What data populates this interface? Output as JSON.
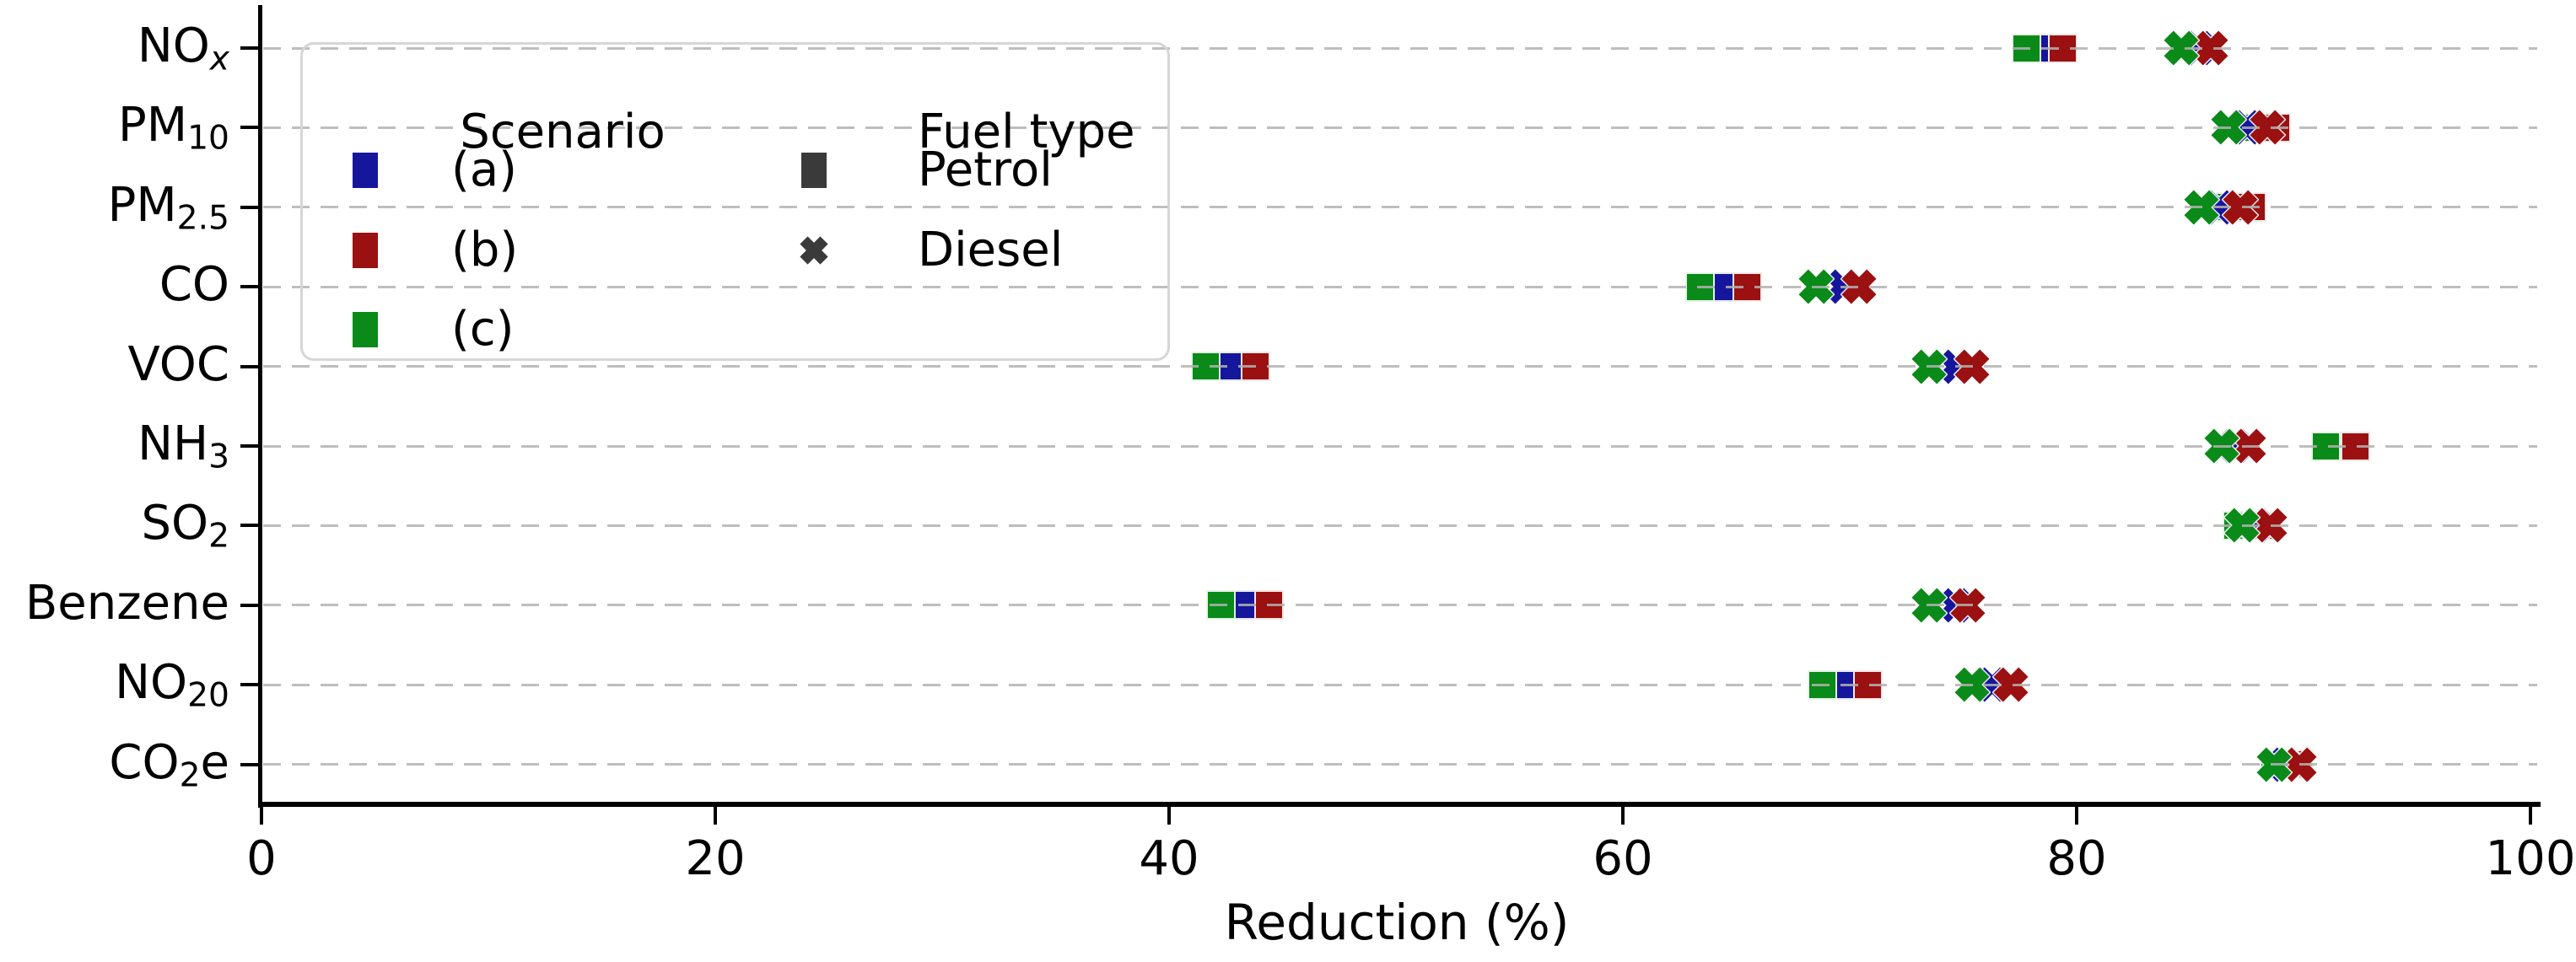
{
  "chart_data": {
    "type": "scatter",
    "title": "",
    "xlabel": "Reduction (%)",
    "ylabel": "",
    "xlim": [
      0,
      100
    ],
    "xticks": [
      0,
      20,
      40,
      60,
      80,
      100
    ],
    "xtick_labels": [
      "0",
      "20",
      "40",
      "60",
      "80",
      "100"
    ],
    "grid": "horizontal-dashed",
    "legend_position": "upper-left",
    "categories": [
      "NO_{x}",
      "PM_{10}",
      "PM_{2.5}",
      "CO",
      "VOC",
      "NH_{3}",
      "SO_{2}",
      "Benzene",
      "NO_{20}",
      "CO_{2}e"
    ],
    "series": [
      {
        "scenario": "(a)",
        "fuel": "Petrol",
        "marker": "square",
        "color": "#16169c",
        "values": [
          78.7,
          88.2,
          87.0,
          64.4,
          42.7,
          91.6,
          87.6,
          43.4,
          69.8,
          89.2
        ]
      },
      {
        "scenario": "(b)",
        "fuel": "Petrol",
        "marker": "square",
        "color": "#9b1010",
        "values": [
          79.4,
          88.8,
          87.7,
          65.5,
          43.8,
          92.3,
          88.2,
          44.4,
          70.8,
          89.8
        ]
      },
      {
        "scenario": "(c)",
        "fuel": "Petrol",
        "marker": "square",
        "color": "#0a8a18",
        "values": [
          77.8,
          87.6,
          86.4,
          63.4,
          41.6,
          91.0,
          87.1,
          42.3,
          68.8,
          88.7
        ]
      },
      {
        "scenario": "(a)",
        "fuel": "Diesel",
        "marker": "x",
        "color": "#16169c",
        "values": [
          85.4,
          87.5,
          86.3,
          69.7,
          74.7,
          87.0,
          87.9,
          74.7,
          76.3,
          89.2
        ]
      },
      {
        "scenario": "(b)",
        "fuel": "Diesel",
        "marker": "x",
        "color": "#9b1010",
        "values": [
          85.9,
          88.4,
          87.2,
          70.4,
          75.4,
          87.6,
          88.5,
          75.2,
          77.1,
          89.8
        ]
      },
      {
        "scenario": "(c)",
        "fuel": "Diesel",
        "marker": "x",
        "color": "#0a8a18",
        "values": [
          84.6,
          86.7,
          85.5,
          68.5,
          73.5,
          86.4,
          87.3,
          73.5,
          75.4,
          88.7
        ]
      }
    ]
  },
  "legend": {
    "scenario_title": "Scenario",
    "fuel_title": "Fuel type",
    "scenarios": [
      {
        "label": "(a)",
        "color": "#16169c"
      },
      {
        "label": "(b)",
        "color": "#9b1010"
      },
      {
        "label": "(c)",
        "color": "#0a8a18"
      }
    ],
    "fuels": [
      {
        "label": "Petrol",
        "marker": "square"
      },
      {
        "label": "Diesel",
        "marker": "x"
      }
    ],
    "fuel_marker_color": "#3a3a3a"
  },
  "axis": {
    "grid_color": "#b2b2b2",
    "spine_color": "#000000",
    "text_color": "#000000"
  }
}
